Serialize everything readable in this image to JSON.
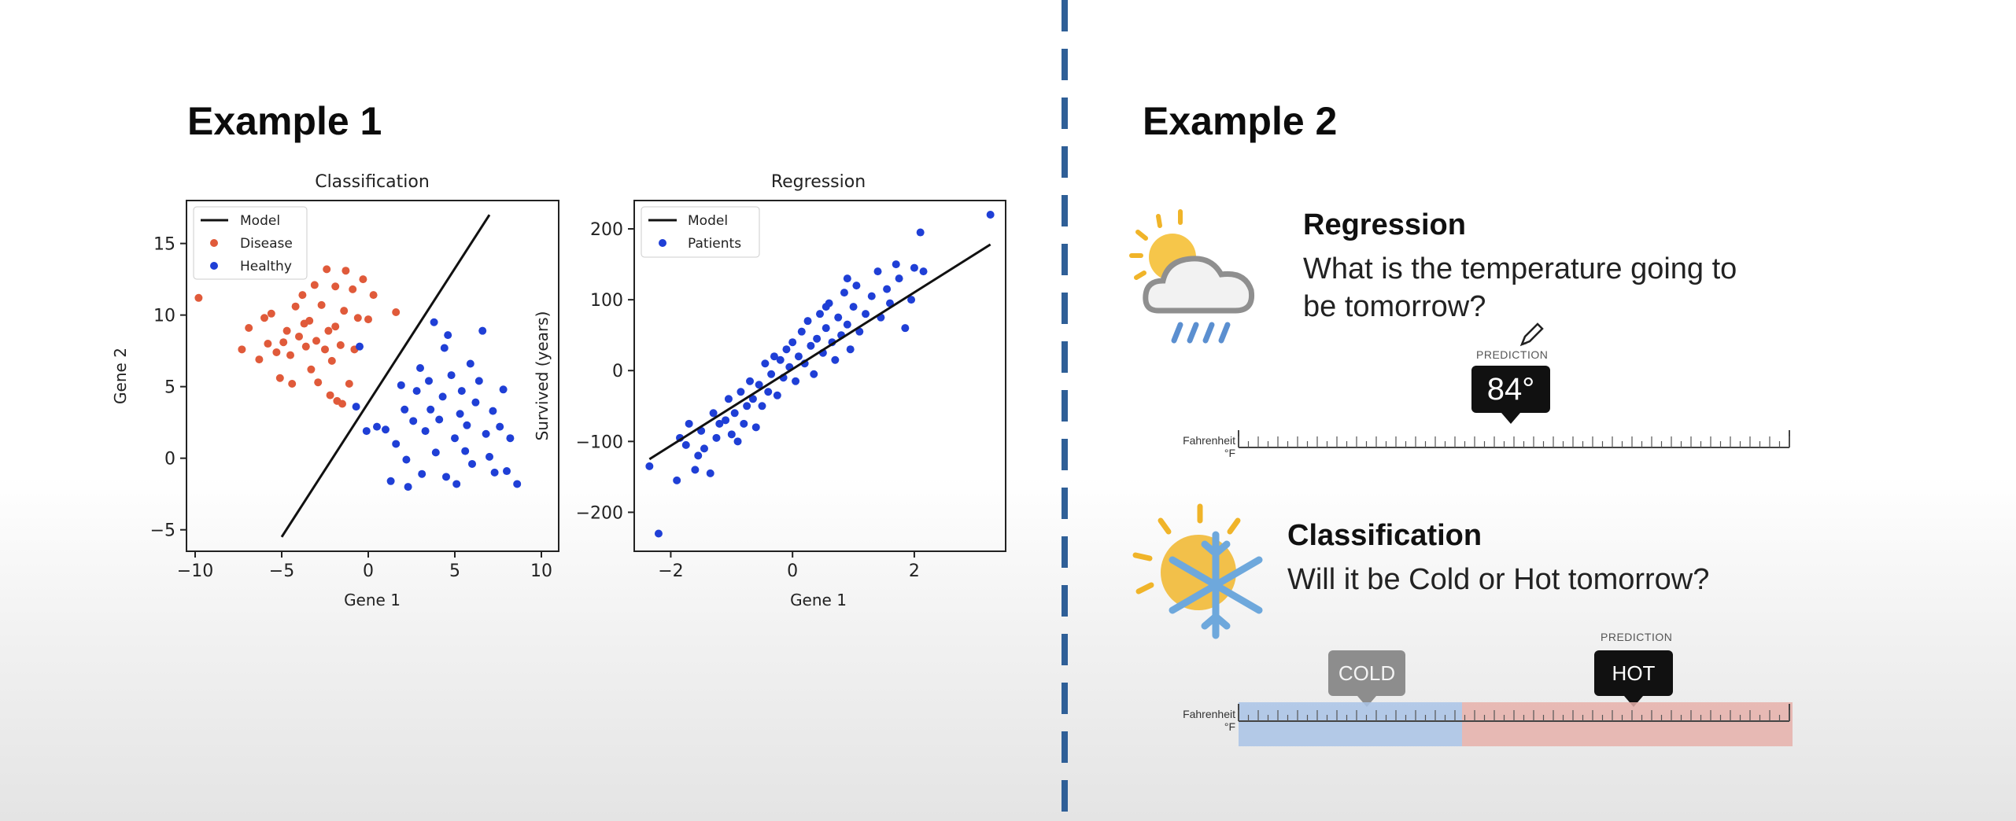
{
  "left": {
    "heading": "Example 1",
    "charts": [
      {
        "title": "Classification",
        "xlabel": "Gene 1",
        "ylabel": "Gene 2",
        "legend": [
          "Model",
          "Disease",
          "Healthy"
        ]
      },
      {
        "title": "Regression",
        "xlabel": "Gene 1",
        "ylabel": "Survived (years)",
        "legend": [
          "Model",
          "Patients"
        ]
      }
    ]
  },
  "right": {
    "heading": "Example 2",
    "regression": {
      "title": "Regression",
      "question": "What is the temperature going to be tomorrow?",
      "question_line1": "What is the temperature going to",
      "question_line2": "be tomorrow?",
      "prediction_label": "PREDICTION",
      "prediction_value": "84°",
      "scale_label_1": "Fahrenheit",
      "scale_label_2": "°F"
    },
    "classification": {
      "title": "Classification",
      "question": "Will it be Cold or Hot tomorrow?",
      "prediction_label": "PREDICTION",
      "cold_label": "COLD",
      "hot_label": "HOT",
      "scale_label_1": "Fahrenheit",
      "scale_label_2": "°F"
    }
  },
  "icons": [
    "weather-rain-icon",
    "sun-snowflake-icon",
    "pencil-cursor-icon"
  ],
  "colors": {
    "disease": "#e05a3a",
    "healthy": "#1f3fd6",
    "patients": "#1f3fd6",
    "divider": "#2f5f97",
    "cold_band": "#a9c3e6",
    "hot_band": "#e6b0aa"
  },
  "chart_data": [
    {
      "type": "scatter",
      "title": "Classification",
      "xlabel": "Gene 1",
      "ylabel": "Gene 2",
      "xlim": [
        -10.5,
        11
      ],
      "ylim": [
        -6.5,
        18
      ],
      "xticks": [
        -10,
        -5,
        0,
        5,
        10
      ],
      "yticks": [
        -5,
        0,
        5,
        10,
        15
      ],
      "legend_position": "top-left",
      "line": {
        "name": "Model",
        "x": [
          -5,
          7
        ],
        "y": [
          -5.5,
          17
        ]
      },
      "series": [
        {
          "name": "Disease",
          "points": [
            [
              -9.8,
              11.2
            ],
            [
              -7.3,
              7.6
            ],
            [
              -6.9,
              9.1
            ],
            [
              -6.3,
              6.9
            ],
            [
              -6.0,
              9.8
            ],
            [
              -5.6,
              10.1
            ],
            [
              -5.3,
              7.4
            ],
            [
              -5.1,
              5.6
            ],
            [
              -4.9,
              8.1
            ],
            [
              -4.7,
              8.9
            ],
            [
              -4.5,
              7.2
            ],
            [
              -4.4,
              5.2
            ],
            [
              -4.2,
              10.6
            ],
            [
              -4.0,
              8.5
            ],
            [
              -3.8,
              11.4
            ],
            [
              -3.6,
              7.8
            ],
            [
              -3.4,
              9.6
            ],
            [
              -3.3,
              6.2
            ],
            [
              -3.1,
              12.1
            ],
            [
              -3.0,
              8.2
            ],
            [
              -2.9,
              5.3
            ],
            [
              -2.7,
              10.7
            ],
            [
              -2.5,
              7.6
            ],
            [
              -2.4,
              13.2
            ],
            [
              -2.3,
              8.9
            ],
            [
              -2.1,
              6.8
            ],
            [
              -1.9,
              12.0
            ],
            [
              -1.8,
              4.0
            ],
            [
              -1.6,
              7.9
            ],
            [
              -1.5,
              3.8
            ],
            [
              -1.4,
              10.3
            ],
            [
              -1.3,
              13.1
            ],
            [
              -1.1,
              5.2
            ],
            [
              -0.9,
              11.8
            ],
            [
              -0.8,
              7.6
            ],
            [
              -0.6,
              9.8
            ],
            [
              -0.3,
              12.5
            ],
            [
              0.0,
              9.7
            ],
            [
              0.3,
              11.4
            ],
            [
              1.6,
              10.2
            ],
            [
              -2.2,
              4.4
            ],
            [
              -3.7,
              9.4
            ],
            [
              -5.8,
              8.0
            ],
            [
              -1.9,
              9.2
            ]
          ]
        },
        {
          "name": "Healthy",
          "points": [
            [
              -0.7,
              3.6
            ],
            [
              -0.5,
              7.8
            ],
            [
              -0.1,
              1.9
            ],
            [
              0.5,
              2.2
            ],
            [
              1.0,
              2.0
            ],
            [
              1.3,
              -1.6
            ],
            [
              1.6,
              1.0
            ],
            [
              1.9,
              5.1
            ],
            [
              2.1,
              3.4
            ],
            [
              2.2,
              -0.1
            ],
            [
              2.3,
              -2.0
            ],
            [
              2.6,
              2.6
            ],
            [
              2.8,
              4.7
            ],
            [
              3.0,
              6.3
            ],
            [
              3.1,
              -1.1
            ],
            [
              3.3,
              1.9
            ],
            [
              3.6,
              3.4
            ],
            [
              3.8,
              9.5
            ],
            [
              3.9,
              0.4
            ],
            [
              4.1,
              2.7
            ],
            [
              4.3,
              4.3
            ],
            [
              4.5,
              -1.3
            ],
            [
              4.6,
              8.6
            ],
            [
              4.8,
              5.8
            ],
            [
              5.0,
              1.4
            ],
            [
              5.1,
              -1.8
            ],
            [
              5.3,
              3.1
            ],
            [
              5.4,
              4.7
            ],
            [
              5.6,
              0.5
            ],
            [
              5.7,
              2.3
            ],
            [
              5.9,
              6.6
            ],
            [
              6.0,
              -0.4
            ],
            [
              6.2,
              3.9
            ],
            [
              6.4,
              5.4
            ],
            [
              6.6,
              8.9
            ],
            [
              6.8,
              1.7
            ],
            [
              7.0,
              0.1
            ],
            [
              7.2,
              3.3
            ],
            [
              7.3,
              -1.0
            ],
            [
              7.6,
              2.2
            ],
            [
              7.8,
              4.8
            ],
            [
              8.0,
              -0.9
            ],
            [
              8.2,
              1.4
            ],
            [
              8.6,
              -1.8
            ],
            [
              4.4,
              7.7
            ],
            [
              3.5,
              5.4
            ]
          ]
        }
      ]
    },
    {
      "type": "scatter",
      "title": "Regression",
      "xlabel": "Gene 1",
      "ylabel": "Survived (years)",
      "xlim": [
        -2.6,
        3.5
      ],
      "ylim": [
        -255,
        240
      ],
      "xticks": [
        -2,
        0,
        2
      ],
      "yticks": [
        -200,
        -100,
        0,
        100,
        200
      ],
      "legend_position": "top-left",
      "line": {
        "name": "Model",
        "x": [
          -2.35,
          3.25
        ],
        "y": [
          -125,
          178
        ]
      },
      "series": [
        {
          "name": "Patients",
          "points": [
            [
              -2.35,
              -135
            ],
            [
              -2.2,
              -230
            ],
            [
              -1.9,
              -155
            ],
            [
              -1.85,
              -95
            ],
            [
              -1.75,
              -105
            ],
            [
              -1.6,
              -140
            ],
            [
              -1.55,
              -120
            ],
            [
              -1.5,
              -85
            ],
            [
              -1.45,
              -110
            ],
            [
              -1.35,
              -145
            ],
            [
              -1.3,
              -60
            ],
            [
              -1.25,
              -95
            ],
            [
              -1.2,
              -75
            ],
            [
              -1.1,
              -70
            ],
            [
              -1.05,
              -40
            ],
            [
              -1.0,
              -90
            ],
            [
              -0.95,
              -60
            ],
            [
              -0.85,
              -30
            ],
            [
              -0.8,
              -75
            ],
            [
              -0.75,
              -50
            ],
            [
              -0.7,
              -15
            ],
            [
              -0.65,
              -40
            ],
            [
              -0.6,
              -80
            ],
            [
              -0.55,
              -20
            ],
            [
              -0.5,
              -50
            ],
            [
              -0.45,
              10
            ],
            [
              -0.4,
              -30
            ],
            [
              -0.35,
              -5
            ],
            [
              -0.3,
              20
            ],
            [
              -0.25,
              -35
            ],
            [
              -0.2,
              15
            ],
            [
              -0.15,
              -10
            ],
            [
              -0.1,
              30
            ],
            [
              -0.05,
              5
            ],
            [
              0.0,
              40
            ],
            [
              0.05,
              -15
            ],
            [
              0.1,
              20
            ],
            [
              0.15,
              55
            ],
            [
              0.2,
              10
            ],
            [
              0.25,
              70
            ],
            [
              0.3,
              35
            ],
            [
              0.35,
              -5
            ],
            [
              0.4,
              45
            ],
            [
              0.45,
              80
            ],
            [
              0.5,
              25
            ],
            [
              0.55,
              60
            ],
            [
              0.6,
              95
            ],
            [
              0.65,
              40
            ],
            [
              0.7,
              15
            ],
            [
              0.75,
              75
            ],
            [
              0.8,
              50
            ],
            [
              0.85,
              110
            ],
            [
              0.9,
              65
            ],
            [
              0.95,
              30
            ],
            [
              1.0,
              90
            ],
            [
              1.05,
              120
            ],
            [
              1.1,
              55
            ],
            [
              1.2,
              80
            ],
            [
              1.3,
              105
            ],
            [
              1.4,
              140
            ],
            [
              1.45,
              75
            ],
            [
              1.55,
              115
            ],
            [
              1.6,
              95
            ],
            [
              1.7,
              150
            ],
            [
              1.75,
              130
            ],
            [
              1.85,
              60
            ],
            [
              1.95,
              100
            ],
            [
              2.0,
              145
            ],
            [
              2.1,
              195
            ],
            [
              2.15,
              140
            ],
            [
              3.25,
              220
            ],
            [
              0.55,
              90
            ],
            [
              -0.9,
              -100
            ],
            [
              -1.7,
              -75
            ],
            [
              0.9,
              130
            ]
          ]
        }
      ]
    }
  ]
}
